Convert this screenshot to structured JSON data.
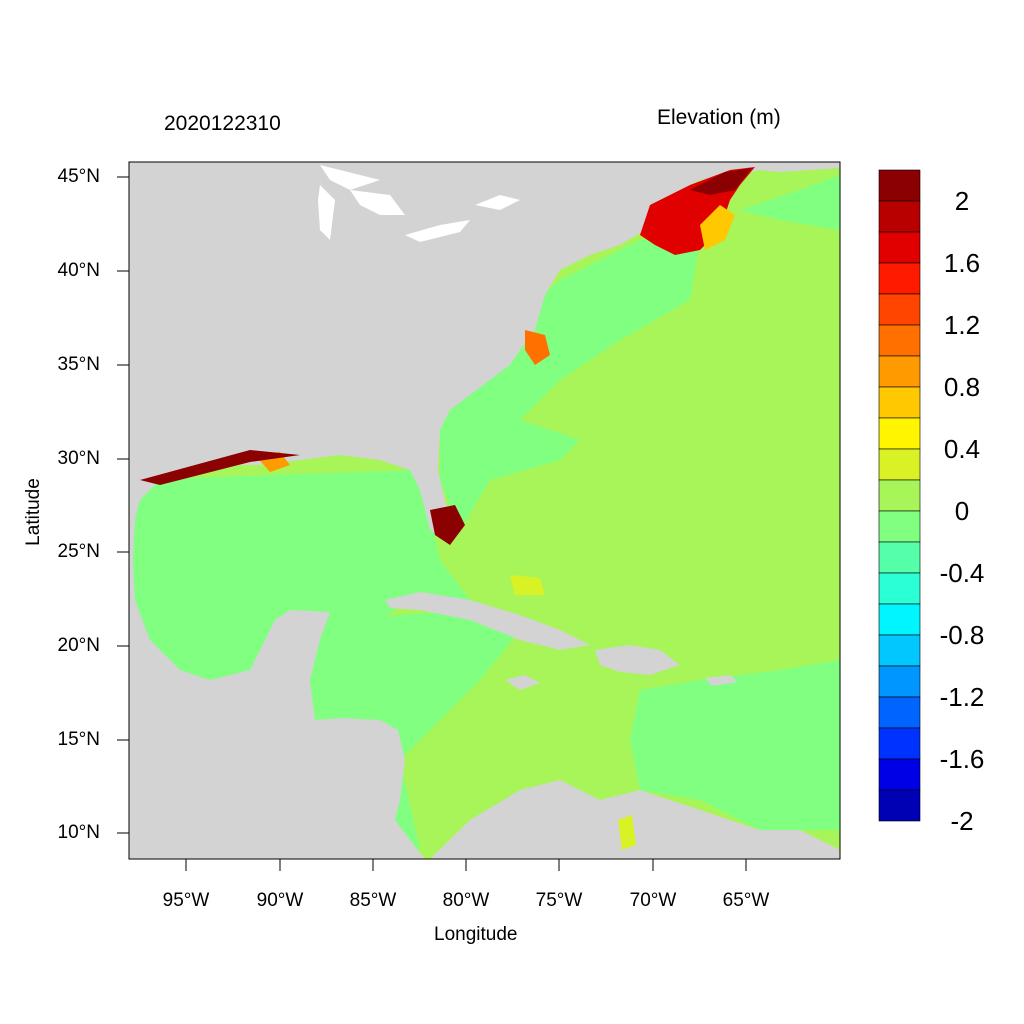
{
  "header": {
    "date_label": "2020122310",
    "variable_label": "Elevation (m)"
  },
  "axes": {
    "xlabel": "Longitude",
    "ylabel": "Latitude",
    "x_ticks": [
      "95°W",
      "90°W",
      "85°W",
      "80°W",
      "75°W",
      "70°W",
      "65°W"
    ],
    "y_ticks": [
      "45°N",
      "40°N",
      "35°N",
      "30°N",
      "25°N",
      "20°N",
      "15°N",
      "10°N"
    ]
  },
  "colorbar": {
    "labels": [
      "2",
      "1.6",
      "1.2",
      "0.8",
      "0.4",
      "0",
      "-0.4",
      "-0.8",
      "-1.2",
      "-1.6",
      "-2"
    ],
    "colors": [
      "#8b0000",
      "#b80000",
      "#e00000",
      "#ff1a00",
      "#ff4500",
      "#ff7000",
      "#ff9a00",
      "#ffc800",
      "#fff500",
      "#d9f226",
      "#a8f55a",
      "#80ff80",
      "#55ffaa",
      "#2affd5",
      "#00f5ff",
      "#00c8ff",
      "#0096ff",
      "#0064ff",
      "#0032ff",
      "#0000e6",
      "#0000b4"
    ]
  },
  "palette": {
    "land": "#d3d3d3",
    "lakes": "#ffffff",
    "ocean_near_zero": "#80ff80",
    "ocean_slight_positive": "#a8f55a",
    "surge_high": "#8b0000"
  }
}
